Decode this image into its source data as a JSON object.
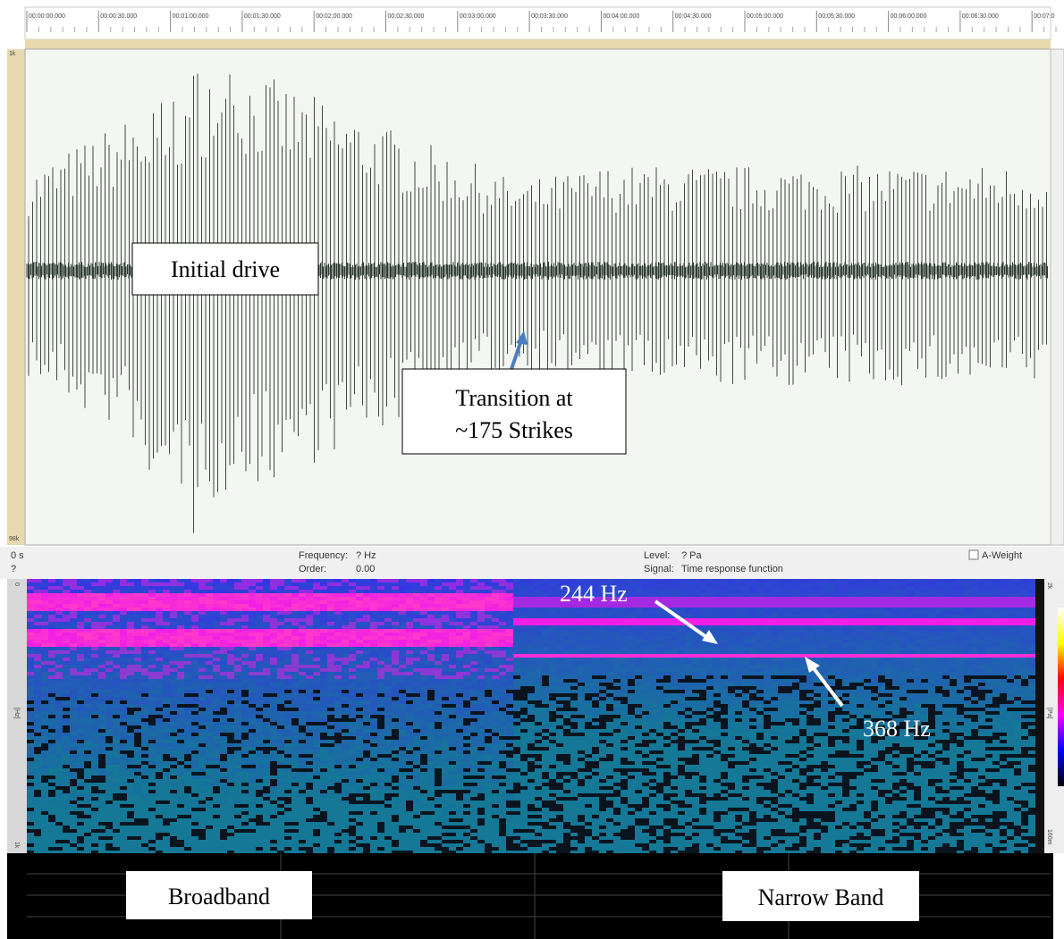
{
  "timeline": {
    "labels": [
      "00:00:00.000",
      "00:00:30.000",
      "00:01:00.000",
      "00:01:30.000",
      "00:02:00.000",
      "00:02:30.000",
      "00:03:00.000",
      "00:03:30.000",
      "00:04:00.000",
      "00:04:30.000",
      "00:05:00.000",
      "00:05:30.000",
      "00:06:00.000",
      "00:06:30.000",
      "00:07:0"
    ]
  },
  "waveform": {
    "scale_top": "1k",
    "scale_bottom": "98k"
  },
  "info_bar": {
    "time": "0 s",
    "time_sub": "?",
    "frequency_label": "Frequency:",
    "frequency_value": "? Hz",
    "order_label": "Order:",
    "order_value": "0.00",
    "level_label": "Level:",
    "level_value": "? Pa",
    "signal_label": "Signal:",
    "signal_value": "Time response function",
    "a_weight": "A-Weight"
  },
  "spectrogram": {
    "left_top": "0",
    "left_label": "[Hz]",
    "left_bottom": "1k",
    "right_top": "2k",
    "right_label": "[Pa]",
    "right_bottom": "160m"
  },
  "annotations": {
    "initial_drive": "Initial drive",
    "transition": [
      "Transition at",
      "~175 Strikes"
    ],
    "hz244": "244 Hz",
    "hz368": "368 Hz",
    "broadband": "Broadband",
    "narrow_band": "Narrow Band"
  }
}
